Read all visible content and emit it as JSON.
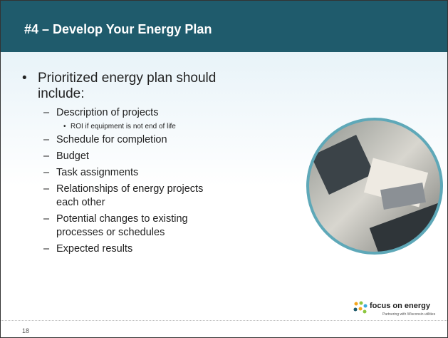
{
  "header": {
    "title": "#4 – Develop Your Energy Plan"
  },
  "bullets": [
    {
      "text": "Prioritized energy plan should include:",
      "items": [
        {
          "text": "Description of projects",
          "items": [
            "ROI if equipment is not end of life"
          ]
        },
        {
          "text": "Schedule for completion",
          "items": []
        },
        {
          "text": "Budget",
          "items": []
        },
        {
          "text": "Task assignments",
          "items": []
        },
        {
          "text": "Relationships of energy projects each other",
          "items": []
        },
        {
          "text": "Potential changes to existing processes or schedules",
          "items": []
        },
        {
          "text": "Expected results",
          "items": []
        }
      ]
    }
  ],
  "footer": {
    "page": "18",
    "logo": {
      "name": "focus on energy",
      "tagline": "Partnering with Wisconsin utilities"
    }
  }
}
